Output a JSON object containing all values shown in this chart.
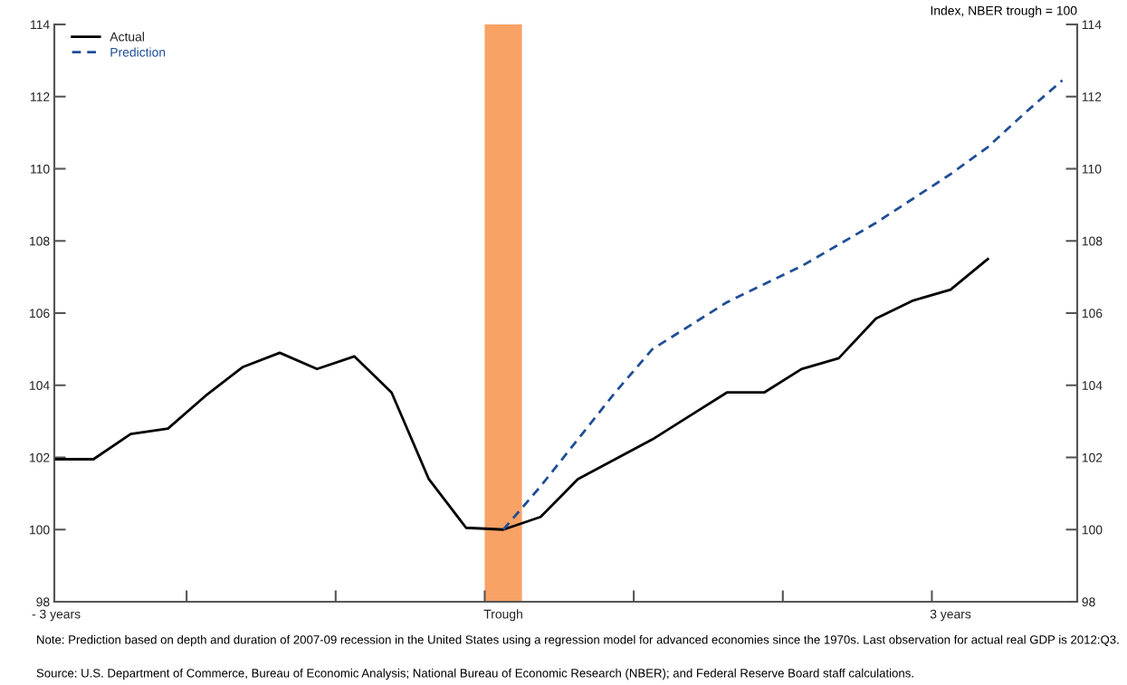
{
  "chart_data": {
    "type": "line",
    "y2label": "Index, NBER trough = 100",
    "series": [
      {
        "name": "Actual",
        "color": "#000000",
        "line_style": "solid",
        "x": [
          -3,
          -2.75,
          -2.5,
          -2.25,
          -2,
          -1.75,
          -1.5,
          -1.25,
          -1,
          -0.75,
          -0.5,
          -0.25,
          0,
          0.25,
          0.5,
          0.75,
          1,
          1.25,
          1.5,
          1.75,
          2,
          2.25,
          2.5,
          2.75,
          3,
          3.25
        ],
        "values": [
          101.95,
          101.95,
          102.65,
          102.8,
          103.7,
          104.5,
          104.9,
          104.45,
          104.8,
          103.8,
          101.4,
          100.05,
          100,
          100.35,
          101.4,
          101.95,
          102.5,
          103.15,
          103.8,
          103.8,
          104.45,
          104.75,
          105.85,
          106.35,
          106.65,
          107.5
        ]
      },
      {
        "name": "Prediction",
        "color": "#1f4e96",
        "line_style": "dashed",
        "x": [
          0,
          0.25,
          0.5,
          0.75,
          1,
          1.5,
          2,
          2.5,
          3,
          3.25,
          3.5,
          3.75
        ],
        "values": [
          100,
          101.2,
          102.5,
          103.8,
          105.0,
          106.3,
          107.3,
          108.5,
          109.85,
          110.6,
          111.55,
          112.45
        ]
      }
    ],
    "xlim": [
      -3.0125,
      3.85
    ],
    "xticks": [
      {
        "value": -3,
        "label": "- 3 years"
      },
      {
        "value": -2.125,
        "label": null
      },
      {
        "value": -1.125,
        "label": null
      },
      {
        "value": -0.125,
        "label": null
      },
      {
        "value": 0,
        "label": "Trough"
      },
      {
        "value": 0.875,
        "label": null
      },
      {
        "value": 1.875,
        "label": null
      },
      {
        "value": 2.875,
        "label": null
      },
      {
        "value": 3,
        "label": "3 years"
      }
    ],
    "ylim": [
      98,
      114
    ],
    "yticks": [
      98,
      100,
      102,
      104,
      106,
      108,
      110,
      112,
      114
    ],
    "y2lim": [
      98,
      114
    ],
    "y2ticks": [
      98,
      100,
      102,
      104,
      106,
      108,
      110,
      112,
      114
    ],
    "bands": [
      {
        "axis": "x",
        "from": -0.125,
        "to": 0.125,
        "color": "#f9a265"
      }
    ],
    "legend": "top left",
    "grid": false,
    "annotations": [
      "Note: Prediction based on depth and duration of 2007-09 recession in the United States using a regression model for advanced economies since the 1970s. Last observation for actual real GDP is 2012:Q3.",
      "Source: U.S. Department of Commerce, Bureau of Economic Analysis; National Bureau of Economic Research (NBER); and Federal Reserve Board staff calculations."
    ]
  }
}
